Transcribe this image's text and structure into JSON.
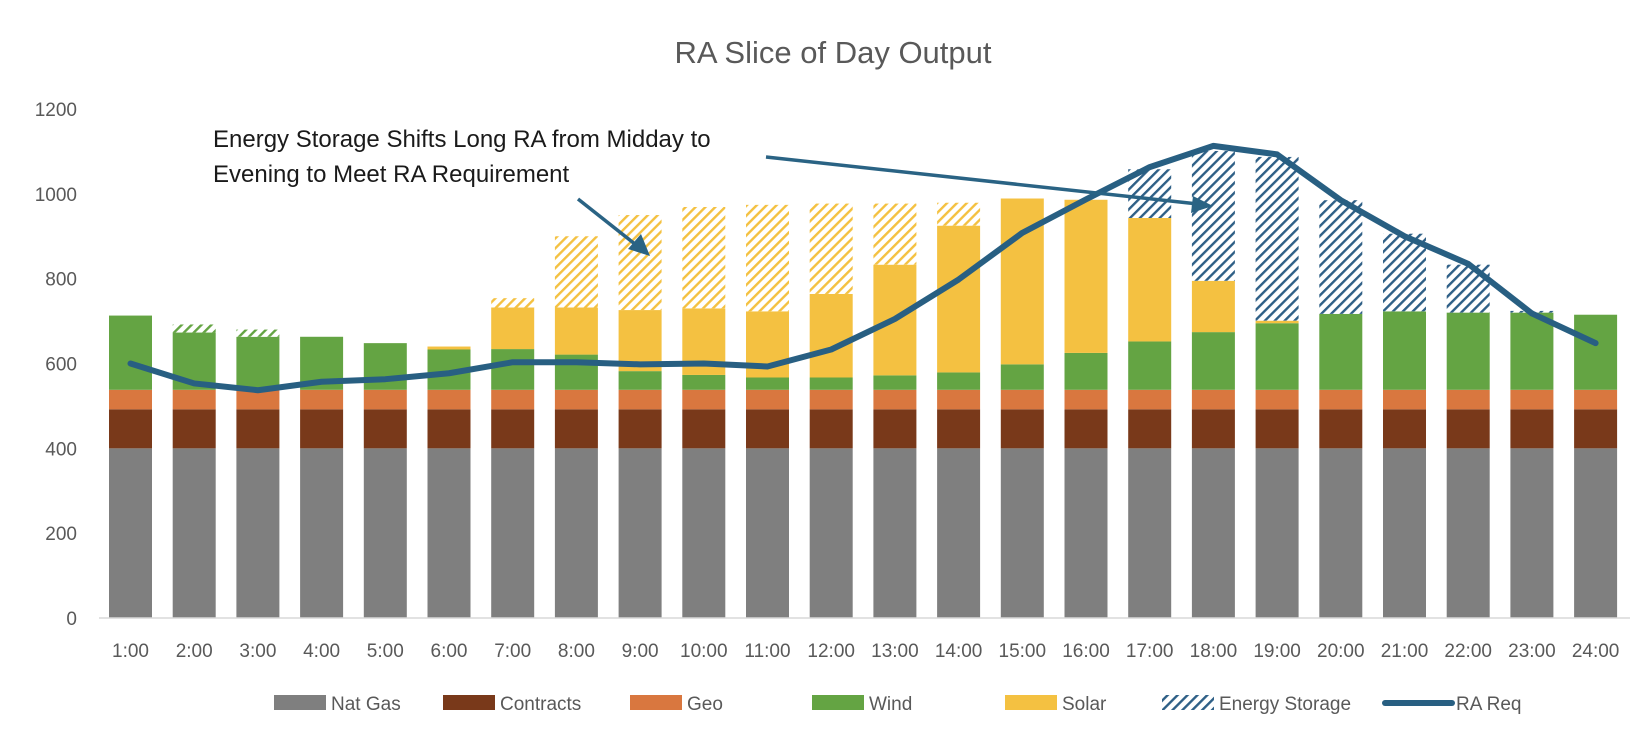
{
  "chart_data": {
    "type": "bar",
    "stacked": true,
    "title": "RA Slice of Day Output",
    "xlabel": "",
    "ylabel": "",
    "ylim": [
      0,
      1200
    ],
    "yticks": [
      0,
      200,
      400,
      600,
      800,
      1000,
      1200
    ],
    "grid": false,
    "legend_position": "bottom",
    "categories": [
      "1:00",
      "2:00",
      "3:00",
      "4:00",
      "5:00",
      "6:00",
      "7:00",
      "8:00",
      "9:00",
      "10:00",
      "11:00",
      "12:00",
      "13:00",
      "14:00",
      "15:00",
      "16:00",
      "17:00",
      "18:00",
      "19:00",
      "20:00",
      "21:00",
      "22:00",
      "23:00",
      "24:00"
    ],
    "series": [
      {
        "name": "Nat Gas",
        "kind": "bar",
        "color": "#7f7f7f",
        "values": [
          400,
          400,
          400,
          400,
          400,
          400,
          400,
          400,
          400,
          400,
          400,
          400,
          400,
          400,
          400,
          400,
          400,
          400,
          400,
          400,
          400,
          400,
          400,
          400
        ]
      },
      {
        "name": "Contracts",
        "kind": "bar",
        "color": "#79391a",
        "values": [
          92,
          92,
          92,
          92,
          92,
          92,
          92,
          92,
          92,
          92,
          92,
          92,
          92,
          92,
          92,
          92,
          92,
          92,
          92,
          92,
          92,
          92,
          92,
          92
        ]
      },
      {
        "name": "Geo",
        "kind": "bar",
        "color": "#d9773f",
        "values": [
          46,
          46,
          46,
          46,
          46,
          46,
          46,
          46,
          46,
          46,
          46,
          46,
          46,
          46,
          46,
          46,
          46,
          46,
          46,
          46,
          46,
          46,
          46,
          46
        ]
      },
      {
        "name": "Wind",
        "kind": "bar",
        "color": "#64a443",
        "values": [
          175,
          135,
          125,
          125,
          110,
          95,
          96,
          83,
          44,
          35,
          29,
          29,
          34,
          41,
          60,
          87,
          114,
          136,
          157,
          179,
          185,
          182,
          182,
          177
        ]
      },
      {
        "name": "Wind (charging storage)",
        "kind": "bar-hatched",
        "color": "#64a443",
        "in_legend": false,
        "values": [
          0,
          19,
          17,
          0,
          0,
          0,
          0,
          0,
          0,
          0,
          0,
          0,
          0,
          0,
          0,
          0,
          0,
          0,
          0,
          0,
          0,
          0,
          0,
          0
        ]
      },
      {
        "name": "Solar",
        "kind": "bar",
        "color": "#f4c141",
        "values": [
          0,
          0,
          0,
          0,
          0,
          7,
          98,
          111,
          144,
          157,
          156,
          197,
          261,
          346,
          391,
          361,
          291,
          121,
          6,
          0,
          0,
          0,
          0,
          0
        ]
      },
      {
        "name": "Solar (charging storage)",
        "kind": "bar-hatched",
        "color": "#f4c141",
        "in_legend": false,
        "values": [
          0,
          0,
          0,
          0,
          0,
          0,
          22,
          168,
          224,
          239,
          251,
          213,
          144,
          54,
          0,
          0,
          0,
          0,
          0,
          0,
          0,
          0,
          0,
          0
        ]
      },
      {
        "name": "Energy Storage",
        "kind": "bar-hatched",
        "color": "#2e5f86",
        "values": [
          0,
          0,
          0,
          0,
          0,
          0,
          0,
          0,
          0,
          0,
          0,
          0,
          0,
          0,
          0,
          0,
          115,
          306,
          386,
          268,
          183,
          113,
          4,
          0
        ]
      },
      {
        "name": "RA Req",
        "kind": "line",
        "color": "#285f82",
        "values": [
          600,
          553,
          537,
          557,
          563,
          577,
          603,
          603,
          598,
          600,
          593,
          633,
          705,
          798,
          908,
          987,
          1063,
          1113,
          1093,
          985,
          900,
          835,
          718,
          648
        ]
      }
    ],
    "annotations": [
      {
        "lines": [
          "Energy Storage Shifts Long RA from Midday to",
          "Evening to Meet RA Requirement"
        ],
        "arrows_to": [
          "9:00",
          "18:00"
        ]
      }
    ]
  },
  "legend": [
    {
      "label": "Nat Gas",
      "series": 0
    },
    {
      "label": "Contracts",
      "series": 1
    },
    {
      "label": "Geo",
      "series": 2
    },
    {
      "label": "Wind",
      "series": 3
    },
    {
      "label": "Solar",
      "series": 5
    },
    {
      "label": "Energy Storage",
      "series": 7
    },
    {
      "label": "RA Req",
      "series": 8
    }
  ]
}
